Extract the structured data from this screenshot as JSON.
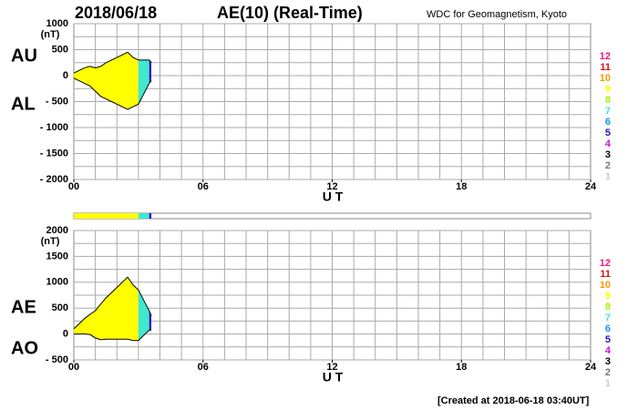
{
  "header": {
    "date": "2018/06/18",
    "title": "AE(10) (Real-Time)",
    "source": "WDC for Geomagnetism, Kyoto"
  },
  "footer": "[Created at 2018-06-18 03:40UT]",
  "stations": {
    "legend": [
      {
        "name": "12",
        "color": "#ee1a7a"
      },
      {
        "name": "11",
        "color": "#e01010"
      },
      {
        "name": "10",
        "color": "#ff9900"
      },
      {
        "name": "9",
        "color": "#ffff00"
      },
      {
        "name": "8",
        "color": "#a8f000"
      },
      {
        "name": "7",
        "color": "#40e8d0"
      },
      {
        "name": "6",
        "color": "#1890ff"
      },
      {
        "name": "5",
        "color": "#3010b0"
      },
      {
        "name": "4",
        "color": "#d010d0"
      },
      {
        "name": "3",
        "color": "#000000"
      },
      {
        "name": "2",
        "color": "#777777"
      },
      {
        "name": "1",
        "color": "#cccccc"
      }
    ],
    "segments": [
      {
        "start": 0,
        "end": 3,
        "stations": 9
      },
      {
        "start": 3,
        "end": 3.5,
        "stations": 7
      },
      {
        "start": 3.5,
        "end": 3.6,
        "stations": 5
      }
    ]
  },
  "chart_data": [
    {
      "type": "area",
      "y_label": "(nT)",
      "x_label": "U T",
      "x": [
        0,
        0.25,
        0.5,
        0.75,
        1,
        1.25,
        1.5,
        1.75,
        2,
        2.25,
        2.5,
        2.75,
        3,
        3.25,
        3.5,
        3.6
      ],
      "series": [
        {
          "name": "AU",
          "color": "#000000",
          "values": [
            50,
            100,
            150,
            180,
            150,
            180,
            250,
            300,
            350,
            400,
            450,
            350,
            300,
            300,
            300,
            250
          ]
        },
        {
          "name": "AL",
          "color": "#000000",
          "values": [
            -50,
            -100,
            -150,
            -200,
            -300,
            -400,
            -450,
            -500,
            -550,
            -600,
            -650,
            -600,
            -550,
            -350,
            -150,
            -100
          ]
        }
      ],
      "xlim": [
        0,
        24
      ],
      "xticks": [
        {
          "value": 0,
          "label": "00"
        },
        {
          "value": 6,
          "label": "06"
        },
        12,
        18,
        24
      ],
      "ylim": [
        -2000,
        1000
      ],
      "yticks": [
        1000,
        500,
        0,
        {
          "value": -500,
          "label": "- 500"
        },
        {
          "value": -1000,
          "label": "- 1000"
        },
        {
          "value": -1500,
          "label": "- 1500"
        },
        {
          "value": -2000,
          "label": "- 2000"
        }
      ],
      "grid": true
    },
    {
      "type": "area",
      "y_label": "(nT)",
      "x_label": "U T",
      "x": [
        0,
        0.25,
        0.5,
        0.75,
        1,
        1.25,
        1.5,
        1.75,
        2,
        2.25,
        2.5,
        2.75,
        3,
        3.25,
        3.5,
        3.6
      ],
      "series": [
        {
          "name": "AE",
          "color": "#000000",
          "values": [
            100,
            200,
            300,
            380,
            450,
            580,
            700,
            800,
            900,
            1000,
            1100,
            950,
            850,
            650,
            450,
            350
          ]
        },
        {
          "name": "AO",
          "color": "#000000",
          "values": [
            0,
            0,
            0,
            -10,
            -75,
            -110,
            -100,
            -100,
            -100,
            -100,
            -100,
            -125,
            -125,
            -25,
            75,
            75
          ]
        }
      ],
      "xlim": [
        0,
        24
      ],
      "xticks": [
        {
          "value": 0,
          "label": "00"
        },
        {
          "value": 6,
          "label": "06"
        },
        12,
        18,
        24
      ],
      "ylim": [
        -500,
        2000
      ],
      "yticks": [
        2000,
        1500,
        1000,
        500,
        0,
        {
          "value": -500,
          "label": "- 500"
        }
      ],
      "grid": true
    }
  ]
}
